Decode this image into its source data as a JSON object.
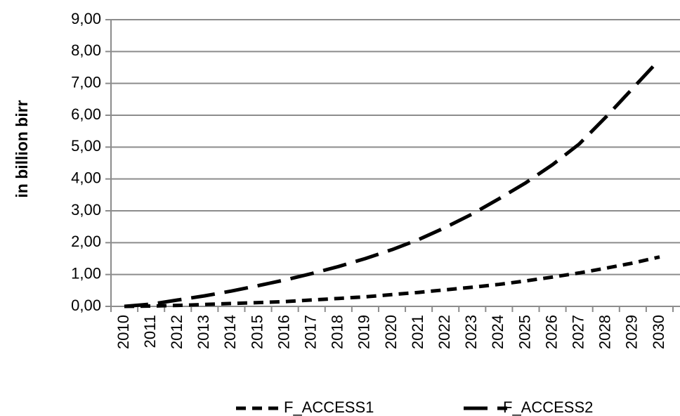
{
  "chart_data": {
    "type": "line",
    "title": "",
    "xlabel": "",
    "ylabel": "in billion birr",
    "x": [
      "2010",
      "2011",
      "2012",
      "2013",
      "2014",
      "2015",
      "2016",
      "2017",
      "2018",
      "2019",
      "2020",
      "2021",
      "2022",
      "2023",
      "2024",
      "2025",
      "2026",
      "2027",
      "2028",
      "2029",
      "2030"
    ],
    "ylim": [
      0,
      9
    ],
    "yticks": [
      "0,00",
      "1,00",
      "2,00",
      "3,00",
      "4,00",
      "5,00",
      "6,00",
      "7,00",
      "8,00",
      "9,00"
    ],
    "grid": "horizontal",
    "legend_position": "bottom",
    "series": [
      {
        "name": "F_ACCESS1",
        "style": "short-dash",
        "color": "#000000",
        "values": [
          0.0,
          0.01,
          0.03,
          0.06,
          0.09,
          0.12,
          0.15,
          0.2,
          0.25,
          0.3,
          0.37,
          0.44,
          0.52,
          0.6,
          0.69,
          0.8,
          0.92,
          1.05,
          1.2,
          1.36,
          1.55
        ]
      },
      {
        "name": "F_ACCESS2",
        "style": "long-dash",
        "color": "#000000",
        "values": [
          0.0,
          0.07,
          0.2,
          0.33,
          0.48,
          0.65,
          0.83,
          1.03,
          1.25,
          1.5,
          1.78,
          2.1,
          2.48,
          2.9,
          3.38,
          3.88,
          4.45,
          5.1,
          5.95,
          6.85,
          7.75
        ]
      }
    ]
  },
  "colors": {
    "gridline": "#8c8c8c",
    "series": "#000000"
  }
}
